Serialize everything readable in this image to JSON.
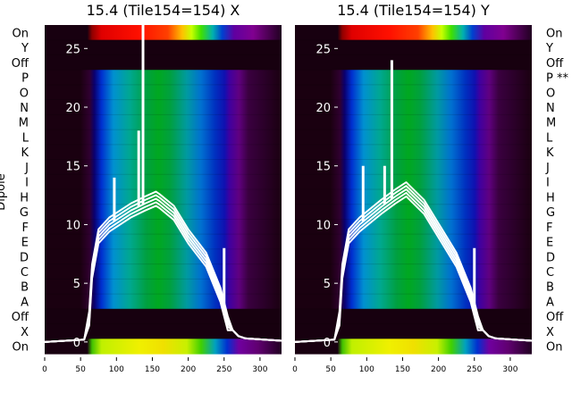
{
  "chart_data": [
    {
      "type": "heatmap",
      "title": "15.4 (Tile154=154) X",
      "ylabel": "Dipole",
      "row_labels": [
        "On",
        "Y",
        "Off",
        "P",
        "O",
        "N",
        "M",
        "L",
        "K",
        "J",
        "I",
        "H",
        "G",
        "F",
        "E",
        "D",
        "C",
        "B",
        "A",
        "Off",
        "X",
        "On"
      ],
      "x_ticks": [
        0,
        50,
        100,
        150,
        200,
        250,
        300
      ],
      "xlim": [
        0,
        330
      ],
      "overlay_ticks": [
        0,
        5,
        10,
        15,
        20,
        25
      ],
      "overlay_ylim": [
        -1,
        27
      ],
      "colormap": "nipy_spectral",
      "line_color": "#ffffff",
      "band_profile": {
        "x": [
          0,
          55,
          62,
          66,
          75,
          90,
          120,
          140,
          155,
          160,
          180,
          200,
          225,
          245,
          255,
          262,
          270,
          280,
          330
        ],
        "y": [
          0,
          0.2,
          2,
          6,
          9,
          10,
          11.2,
          11.8,
          12.2,
          12,
          11,
          9,
          7,
          4,
          1.6,
          1,
          0.5,
          0.3,
          0.1
        ]
      },
      "spikes": [
        {
          "x": 97,
          "y": 14
        },
        {
          "x": 131,
          "y": 18
        },
        {
          "x": 137,
          "y": 27
        },
        {
          "x": 250,
          "y": 8
        }
      ]
    },
    {
      "type": "heatmap",
      "title": "15.4 (Tile154=154) Y",
      "ylabel": "",
      "row_labels": [
        "On",
        "Y",
        "Off",
        "P **",
        "O",
        "N",
        "M",
        "L",
        "K",
        "J",
        "I",
        "H",
        "G",
        "F",
        "E",
        "D",
        "C",
        "B",
        "A",
        "Off",
        "X",
        "On"
      ],
      "x_ticks": [
        0,
        50,
        100,
        150,
        200,
        250,
        300
      ],
      "xlim": [
        0,
        330
      ],
      "overlay_ticks": [
        0,
        5,
        10,
        15,
        20,
        25
      ],
      "overlay_ylim": [
        -1,
        27
      ],
      "colormap": "nipy_spectral",
      "line_color": "#ffffff",
      "band_profile": {
        "x": [
          0,
          55,
          62,
          66,
          75,
          90,
          120,
          140,
          155,
          160,
          180,
          200,
          225,
          245,
          255,
          262,
          270,
          280,
          330
        ],
        "y": [
          0,
          0.2,
          2,
          6,
          9,
          10,
          11.5,
          12.4,
          13,
          12.7,
          11.5,
          9.5,
          7,
          4,
          1.6,
          1,
          0.5,
          0.3,
          0.1
        ]
      },
      "spikes": [
        {
          "x": 95,
          "y": 15
        },
        {
          "x": 125,
          "y": 15
        },
        {
          "x": 135,
          "y": 24
        },
        {
          "x": 250,
          "y": 8
        }
      ]
    }
  ]
}
